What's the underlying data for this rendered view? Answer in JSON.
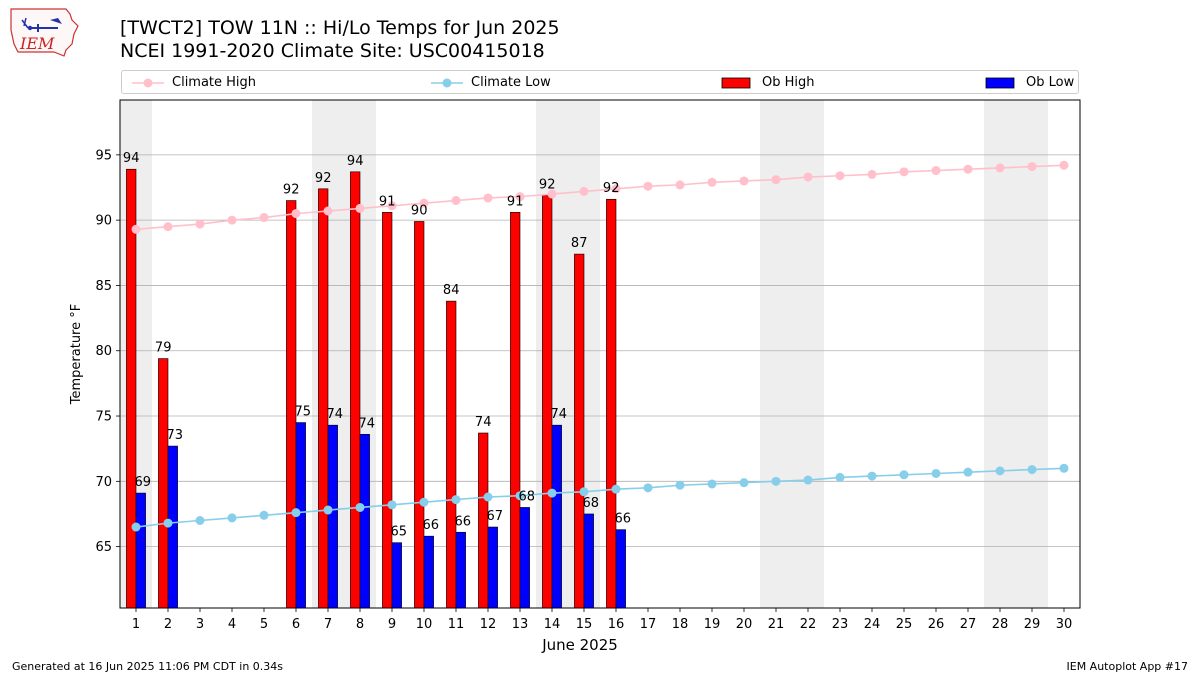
{
  "title_line1": "[TWCT2] TOW 11N :: Hi/Lo Temps for Jun 2025",
  "title_line2": "NCEI 1991-2020 Climate Site: USC00415018",
  "logo_text": "IEM",
  "footer_left": "Generated at 16 Jun 2025 11:06 PM CDT in 0.34s",
  "footer_right": "IEM Autoplot App #17",
  "colors": {
    "climate_high": "#ffc0cb",
    "climate_low": "#87ceeb",
    "ob_high": "#ff0000",
    "ob_low": "#0000ff",
    "weekend_shade": "#eeeeee",
    "grid": "#b0b0b0"
  },
  "legend": {
    "climate_high": "Climate High",
    "climate_low": "Climate Low",
    "ob_high": "Ob High",
    "ob_low": "Ob Low"
  },
  "chart_data": {
    "type": "bar",
    "title": "[TWCT2] TOW 11N :: Hi/Lo Temps for Jun 2025",
    "subtitle": "NCEI 1991-2020 Climate Site: USC00415018",
    "xlabel": "June 2025",
    "ylabel": "Temperature °F",
    "x": [
      1,
      2,
      3,
      4,
      5,
      6,
      7,
      8,
      9,
      10,
      11,
      12,
      13,
      14,
      15,
      16,
      17,
      18,
      19,
      20,
      21,
      22,
      23,
      24,
      25,
      26,
      27,
      28,
      29,
      30
    ],
    "xlim": [
      0.5,
      30.5
    ],
    "ylim": [
      60.3,
      99.2
    ],
    "yticks": [
      65,
      70,
      75,
      80,
      85,
      90,
      95
    ],
    "grid": "horizontal",
    "weekend_days": [
      1,
      7,
      8,
      14,
      15,
      21,
      22,
      28,
      29
    ],
    "series": [
      {
        "name": "Ob High",
        "kind": "bar",
        "values": [
          93.9,
          79.4,
          null,
          null,
          null,
          91.5,
          92.4,
          93.7,
          90.6,
          89.9,
          83.8,
          73.7,
          90.6,
          91.9,
          87.4,
          91.6,
          null,
          null,
          null,
          null,
          null,
          null,
          null,
          null,
          null,
          null,
          null,
          null,
          null,
          null
        ],
        "labels": [
          "94",
          "79",
          null,
          null,
          null,
          "92",
          "92",
          "94",
          "91",
          "90",
          "84",
          "74",
          "91",
          "92",
          "87",
          "92",
          null,
          null,
          null,
          null,
          null,
          null,
          null,
          null,
          null,
          null,
          null,
          null,
          null,
          null
        ]
      },
      {
        "name": "Ob Low",
        "kind": "bar",
        "values": [
          69.1,
          72.7,
          null,
          null,
          null,
          74.5,
          74.3,
          73.6,
          65.3,
          65.8,
          66.1,
          66.5,
          68.0,
          74.3,
          67.5,
          66.3,
          null,
          null,
          null,
          null,
          null,
          null,
          null,
          null,
          null,
          null,
          null,
          null,
          null,
          null
        ],
        "labels": [
          "69",
          "73",
          null,
          null,
          null,
          "75",
          "74",
          "74",
          "65",
          "66",
          "66",
          "67",
          "68",
          "74",
          "68",
          "66",
          null,
          null,
          null,
          null,
          null,
          null,
          null,
          null,
          null,
          null,
          null,
          null,
          null,
          null
        ]
      },
      {
        "name": "Climate High",
        "kind": "line",
        "values": [
          89.3,
          89.5,
          89.7,
          90.0,
          90.2,
          90.5,
          90.7,
          90.9,
          91.1,
          91.3,
          91.5,
          91.7,
          91.8,
          92.0,
          92.2,
          92.4,
          92.6,
          92.7,
          92.9,
          93.0,
          93.1,
          93.3,
          93.4,
          93.5,
          93.7,
          93.8,
          93.9,
          94.0,
          94.1,
          94.2
        ]
      },
      {
        "name": "Climate Low",
        "kind": "line",
        "values": [
          66.5,
          66.8,
          67.0,
          67.2,
          67.4,
          67.6,
          67.8,
          68.0,
          68.2,
          68.4,
          68.6,
          68.8,
          68.9,
          69.1,
          69.2,
          69.4,
          69.5,
          69.7,
          69.8,
          69.9,
          70.0,
          70.1,
          70.3,
          70.4,
          70.5,
          70.6,
          70.7,
          70.8,
          70.9,
          71.0
        ]
      }
    ]
  }
}
